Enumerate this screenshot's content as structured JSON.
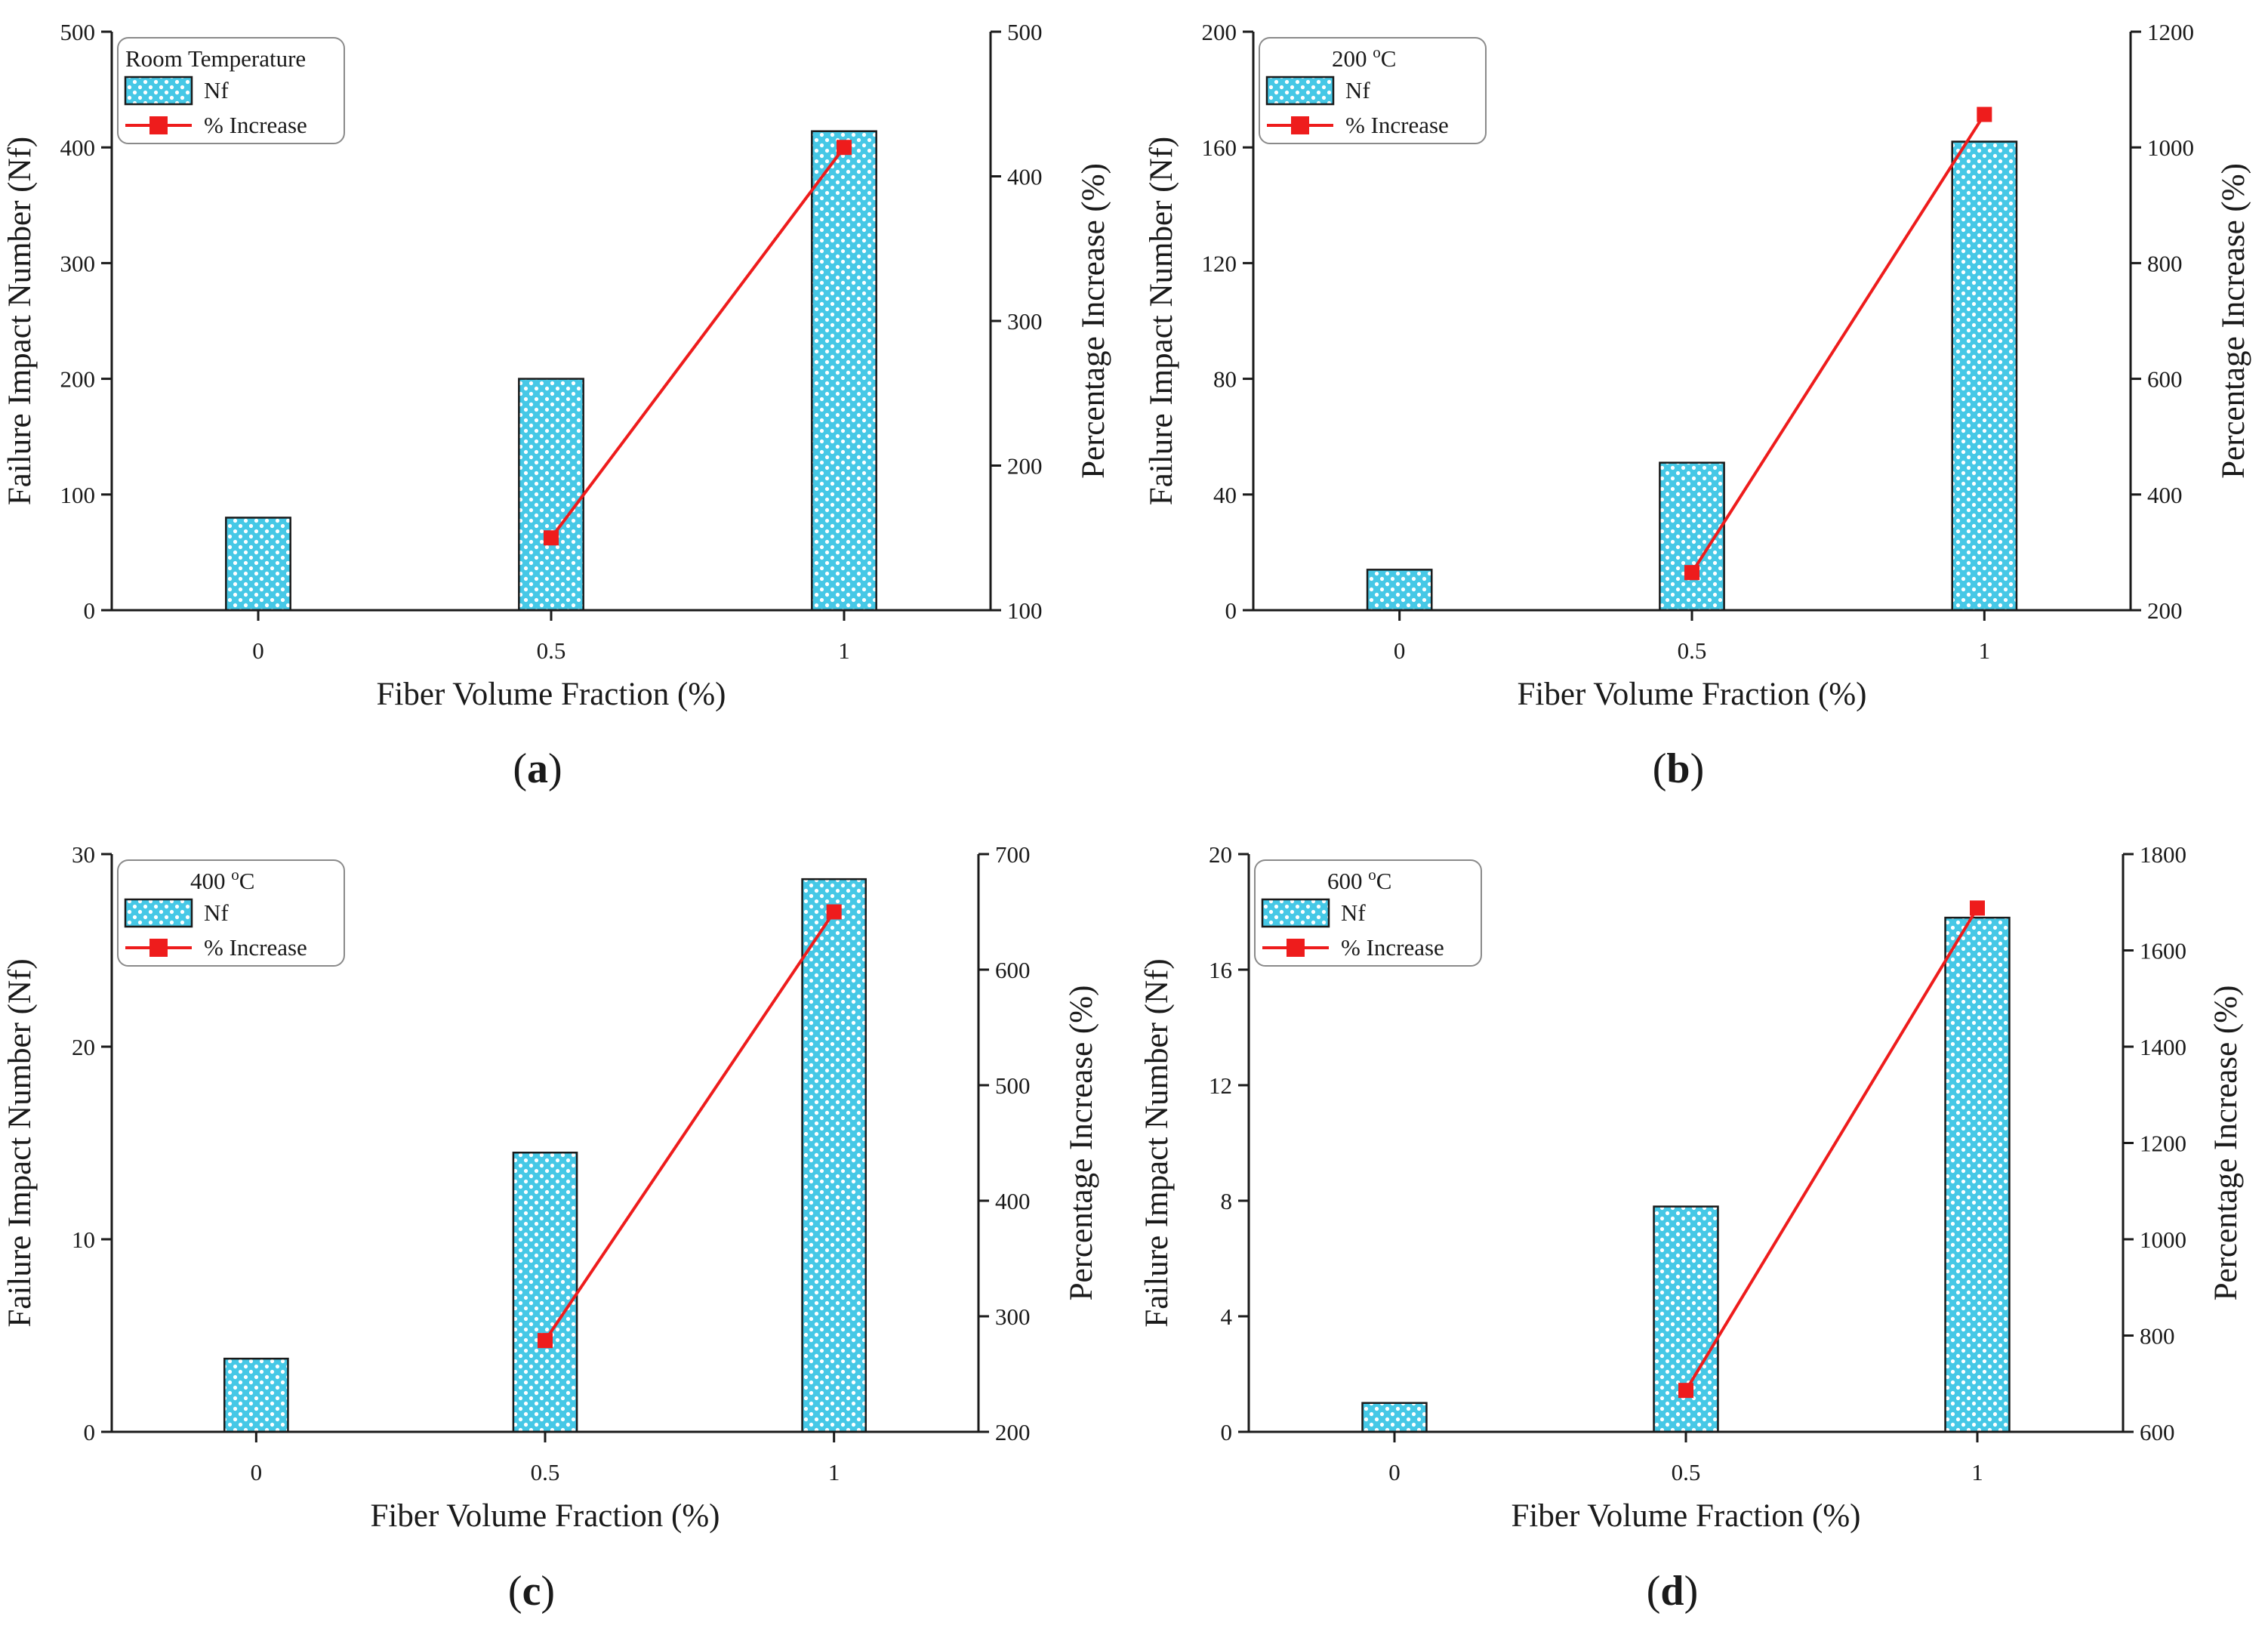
{
  "chart_data": [
    {
      "type": "bar+line",
      "caption_letter": "a",
      "legend_title": "Room Temperature",
      "legend_title_sup": "",
      "legend_title_suffix": "",
      "xlabel": "Fiber Volume Fraction (%)",
      "ylabel": "Failure Impact Number (Nf)",
      "y2label": "Percentage Increase (%)",
      "categories": [
        "0",
        "0.5",
        "1"
      ],
      "series": [
        {
          "name": "Nf",
          "kind": "bar",
          "values": [
            80,
            200,
            414
          ]
        },
        {
          "name": "% Increase",
          "kind": "line",
          "axis": "right",
          "values": [
            null,
            150,
            420
          ]
        }
      ],
      "ylim": [
        0,
        500
      ],
      "yticks": [
        0,
        100,
        200,
        300,
        400,
        500
      ],
      "y2lim": [
        100,
        500
      ],
      "y2ticks": [
        100,
        200,
        300,
        400,
        500
      ],
      "legend_position": "top-left"
    },
    {
      "type": "bar+line",
      "caption_letter": "b",
      "legend_title": "200 ",
      "legend_title_sup": "o",
      "legend_title_suffix": "C",
      "xlabel": "Fiber Volume Fraction (%)",
      "ylabel": "Failure Impact Number (Nf)",
      "y2label": "Percentage Increase (%)",
      "categories": [
        "0",
        "0.5",
        "1"
      ],
      "series": [
        {
          "name": "Nf",
          "kind": "bar",
          "values": [
            14,
            51,
            162
          ]
        },
        {
          "name": "% Increase",
          "kind": "line",
          "axis": "right",
          "values": [
            null,
            265,
            1057
          ]
        }
      ],
      "ylim": [
        0,
        200
      ],
      "yticks": [
        0,
        40,
        80,
        120,
        160,
        200
      ],
      "y2lim": [
        200,
        1200
      ],
      "y2ticks": [
        200,
        400,
        600,
        800,
        1000,
        1200
      ],
      "legend_position": "top-left"
    },
    {
      "type": "bar+line",
      "caption_letter": "c",
      "legend_title": "400 ",
      "legend_title_sup": "o",
      "legend_title_suffix": "C",
      "xlabel": "Fiber Volume Fraction (%)",
      "ylabel": "Failure Impact Number (Nf)",
      "y2label": "Percentage Increase (%)",
      "categories": [
        "0",
        "0.5",
        "1"
      ],
      "series": [
        {
          "name": "Nf",
          "kind": "bar",
          "values": [
            3.8,
            14.5,
            28.7
          ]
        },
        {
          "name": "% Increase",
          "kind": "line",
          "axis": "right",
          "values": [
            null,
            279,
            650
          ]
        }
      ],
      "ylim": [
        0,
        30
      ],
      "yticks": [
        0,
        10,
        20,
        30
      ],
      "y2lim": [
        200,
        700
      ],
      "y2ticks": [
        200,
        300,
        400,
        500,
        600,
        700
      ],
      "legend_position": "top-left"
    },
    {
      "type": "bar+line",
      "caption_letter": "d",
      "legend_title": "600 ",
      "legend_title_sup": "o",
      "legend_title_suffix": "C",
      "xlabel": "Fiber Volume Fraction (%)",
      "ylabel": "Failure Impact Number (Nf)",
      "y2label": "Percentage Increase (%)",
      "categories": [
        "0",
        "0.5",
        "1"
      ],
      "series": [
        {
          "name": "Nf",
          "kind": "bar",
          "values": [
            1,
            7.8,
            17.8
          ]
        },
        {
          "name": "% Increase",
          "kind": "line",
          "axis": "right",
          "values": [
            null,
            686,
            1688
          ]
        }
      ],
      "ylim": [
        0,
        20
      ],
      "yticks": [
        0,
        4,
        8,
        12,
        16,
        20
      ],
      "y2lim": [
        600,
        1800
      ],
      "y2ticks": [
        600,
        800,
        1000,
        1200,
        1400,
        1600,
        1800
      ],
      "legend_position": "top-left"
    }
  ],
  "colors": {
    "bar_fill": "#46c8e6",
    "bar_dot": "#ffffff",
    "line": "#ee1c1c",
    "axis": "#1a1a1a"
  }
}
